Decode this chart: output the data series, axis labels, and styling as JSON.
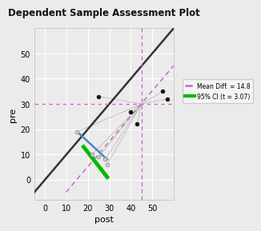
{
  "title": "Dependent Sample Assessment Plot",
  "xlabel": "post",
  "ylabel": "pre",
  "xlim": [
    -5,
    60
  ],
  "ylim": [
    -8,
    60
  ],
  "xticks": [
    0,
    10,
    20,
    30,
    40,
    50
  ],
  "yticks": [
    0,
    10,
    20,
    30,
    40,
    50
  ],
  "bg_color": "#EBEBEB",
  "grid_color": "#FFFFFF",
  "fig_bg_color": "#EBEBEB",
  "mean_diff": 14.8,
  "mean_post": 45.0,
  "mean_pre": 30.0,
  "black_points": [
    [
      25,
      33
    ],
    [
      40,
      27
    ],
    [
      43,
      22
    ],
    [
      55,
      35
    ],
    [
      57,
      32
    ]
  ],
  "gray_points": [
    [
      15,
      19
    ],
    [
      22,
      10
    ],
    [
      25,
      9
    ],
    [
      28,
      8
    ],
    [
      29,
      6
    ]
  ],
  "identity_line_color": "#333333",
  "mean_line_color": "#CC66CC",
  "ci_color": "#00BB00",
  "blue_line_color": "#4488CC",
  "gray_line_color": "#BBBBBB",
  "legend_mean_label": "Mean Diff. = 14.8",
  "legend_ci_label": "95% CI (t = 3.07)",
  "green_line_x1": 18,
  "green_line_y1": 13,
  "green_line_x2": 29,
  "green_line_y2": 1,
  "blue_line_x1": 15,
  "blue_line_y1": 19,
  "blue_line_x2": 29,
  "blue_line_y2": 8
}
